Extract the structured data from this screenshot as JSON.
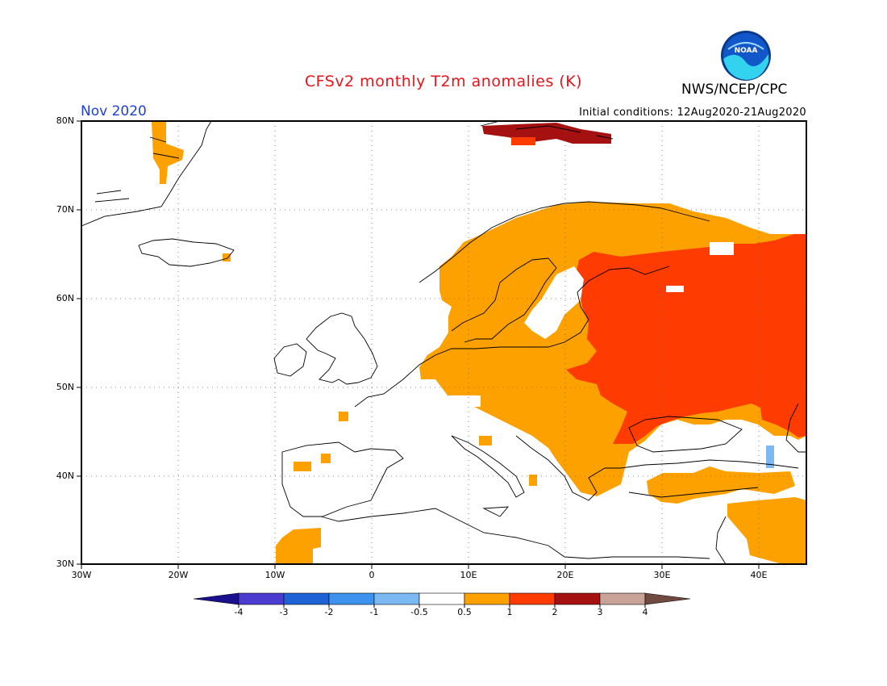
{
  "header": {
    "title": "CFSv2 monthly T2m anomalies (K)",
    "agency": "NWS/NCEP/CPC",
    "logo_text": "NOAA",
    "month": "Nov 2020",
    "initial_conditions": "Initial conditions: 12Aug2020-21Aug2020"
  },
  "map": {
    "region": "Europe",
    "lat_labels": [
      "80N",
      "70N",
      "60N",
      "50N",
      "40N",
      "30N"
    ],
    "lon_labels": [
      "30W",
      "20W",
      "10W",
      "0",
      "10E",
      "20E",
      "30E",
      "40E"
    ],
    "extent": {
      "lon_min": -30,
      "lon_max": 45,
      "lat_min": 30,
      "lat_max": 80
    },
    "grid": "dotted",
    "anomaly_regions": [
      {
        "name": "western-russia-belarus-ukraine",
        "category": "1 to 2"
      },
      {
        "name": "scandinavia-central-europe-balkans",
        "category": "0.5 to 1"
      },
      {
        "name": "svalbard",
        "category": "2 to 3"
      },
      {
        "name": "turkey-middle-east",
        "category": "0.5 to 1"
      },
      {
        "name": "western-iberia-morocco",
        "category": "0.5 to 1"
      },
      {
        "name": "caucasus",
        "category": "-1 to -0.5"
      }
    ]
  },
  "colorbar": {
    "labels": [
      "-4",
      "-3",
      "-2",
      "-1",
      "-0.5",
      "0.5",
      "1",
      "2",
      "3",
      "4"
    ],
    "colors": [
      "#1a0f8c",
      "#4b3ccf",
      "#1d63d6",
      "#3c92ec",
      "#7cb8f2",
      "#ffffff",
      "#fda100",
      "#fe3b00",
      "#a51010",
      "#c9a298",
      "#704a40"
    ]
  },
  "colors": {
    "anomaly_0_5_to_1": "#fda100",
    "anomaly_1_to_2": "#fe3b00",
    "anomaly_2_to_3": "#a51010",
    "anomaly_neg": "#7cb8f2",
    "title": "#e8141b",
    "month": "#1e3fd8"
  }
}
